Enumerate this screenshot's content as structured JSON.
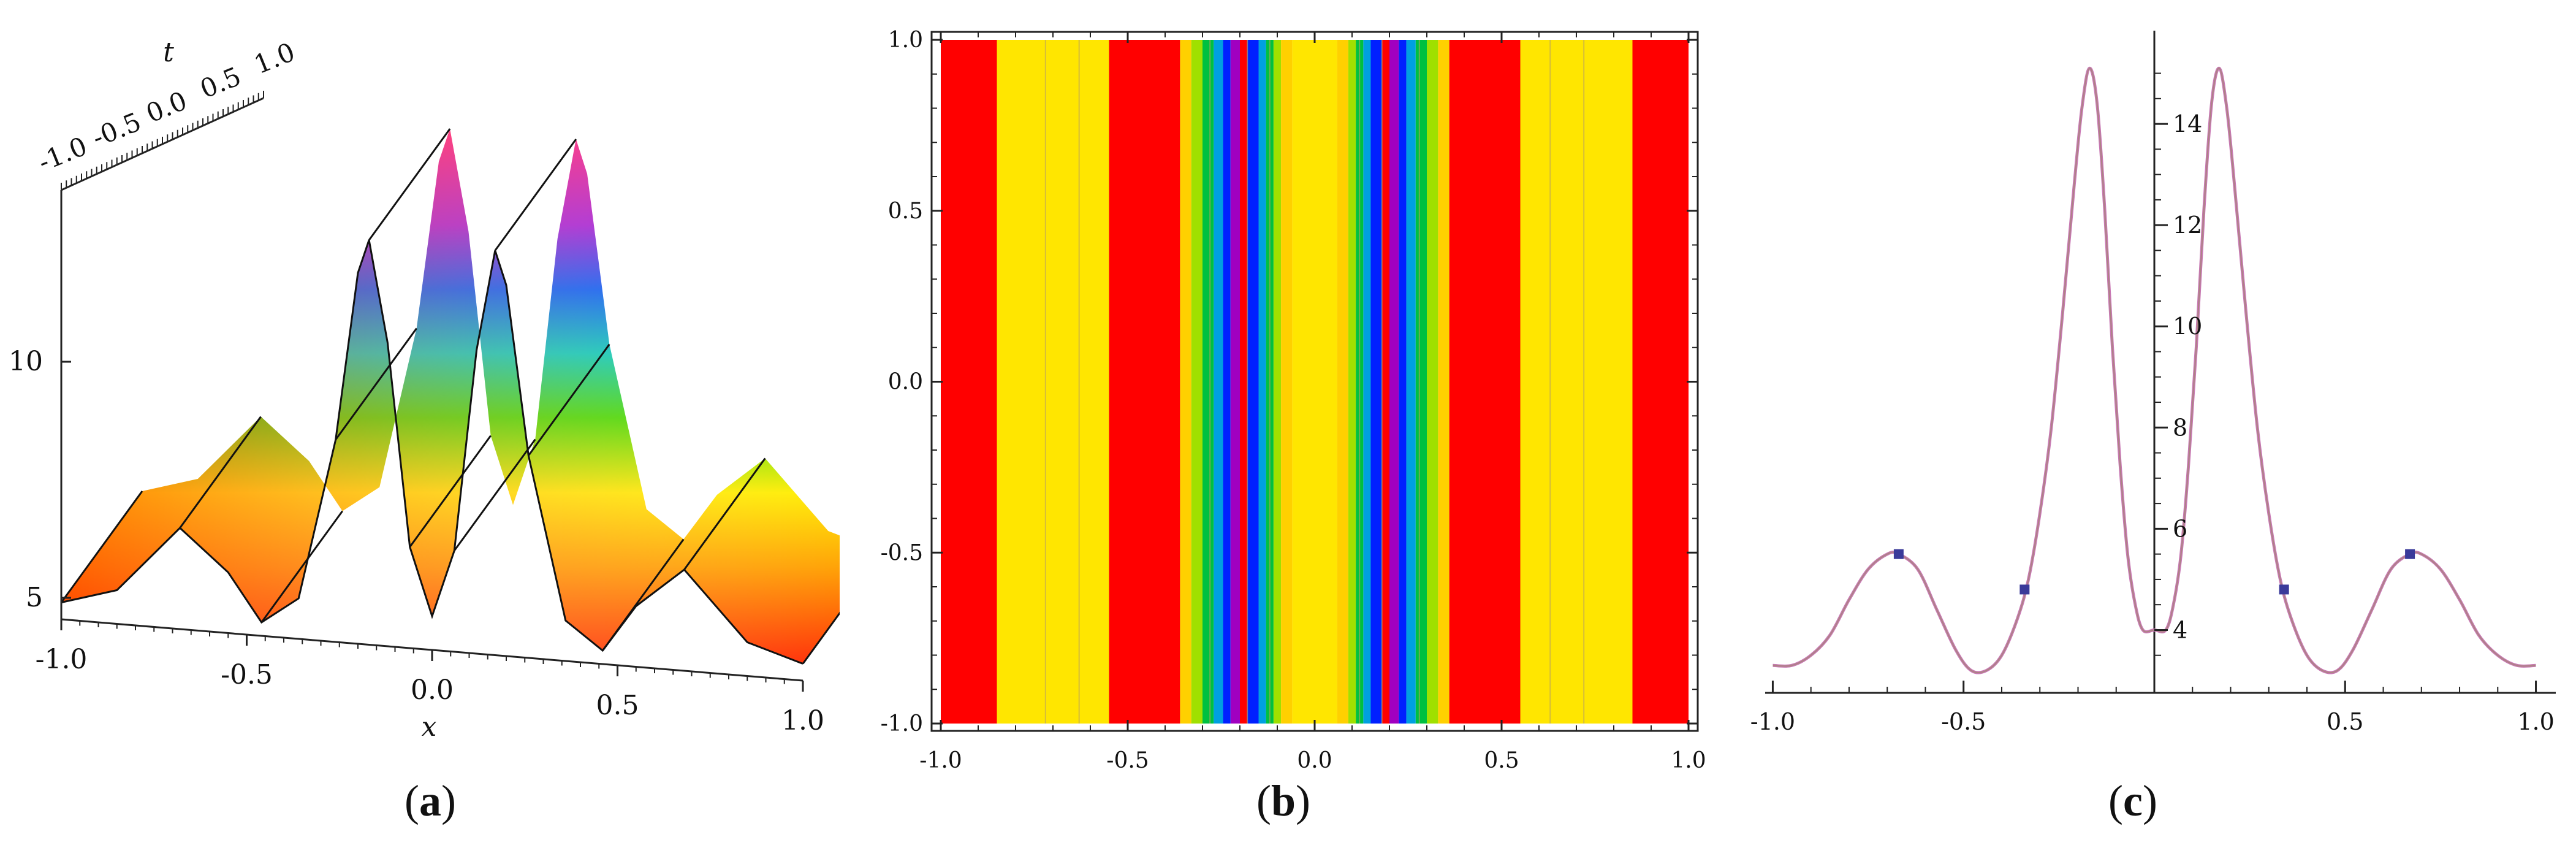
{
  "captions": [
    "(a)",
    "(b)",
    "(c)"
  ],
  "caption_parts": [
    {
      "open": "(",
      "letter": "a",
      "close": ")"
    },
    {
      "open": "(",
      "letter": "b",
      "close": ")"
    },
    {
      "open": "(",
      "letter": "c",
      "close": ")"
    }
  ],
  "chart_data": [
    {
      "type": "surface",
      "xlabel": "x",
      "tlabel": "t",
      "x_ticks": [
        "-1.0",
        "-0.5",
        "0.0",
        "0.5",
        "1.0"
      ],
      "t_ticks": [
        "-1.0",
        "-0.5",
        "0.0",
        "0.5",
        "1.0"
      ],
      "z_ticks": [
        "5",
        "10"
      ],
      "xlim": [
        -1,
        1
      ],
      "tlim": [
        -1,
        1
      ],
      "profile": {
        "x": [
          -1.0,
          -0.85,
          -0.68,
          -0.55,
          -0.46,
          -0.36,
          -0.26,
          -0.2,
          -0.17,
          -0.12,
          -0.06,
          0.0,
          0.06,
          0.12,
          0.17,
          0.2,
          0.26,
          0.36,
          0.46,
          0.55,
          0.68,
          0.85,
          1.0
        ],
        "z": [
          3.5,
          4.0,
          6.0,
          4.8,
          3.4,
          4.2,
          9.0,
          14.0,
          15.0,
          12.0,
          6.0,
          4.0,
          6.0,
          12.0,
          15.0,
          14.0,
          9.0,
          4.2,
          3.4,
          4.8,
          6.0,
          4.0,
          3.5
        ]
      }
    },
    {
      "type": "heatmap",
      "x_ticks": [
        "-1.0",
        "-0.5",
        "0.0",
        "0.5",
        "1.0"
      ],
      "y_ticks": [
        "1.0",
        "0.5",
        "0.0",
        "-0.5",
        "-1.0"
      ],
      "xlim": [
        -1,
        1
      ],
      "ylim": [
        -1,
        1
      ],
      "band_colors": [
        "#ff0000",
        "#ffe600",
        "#ff0000",
        "#ffd000",
        "#a0e000",
        "#00c040",
        "#00a0e0",
        "#0020ff",
        "#a000c0",
        "#ff0000",
        "#00c000",
        "#ffe600"
      ]
    },
    {
      "type": "line",
      "x_ticks": [
        "-1.0",
        "-0.5",
        "0.5",
        "1.0"
      ],
      "y_ticks": [
        "4",
        "6",
        "8",
        "10",
        "12",
        "14"
      ],
      "xlim": [
        -1.02,
        1.02
      ],
      "ylim": [
        3.0,
        15.6
      ],
      "line_color": "#c879b4",
      "marker_color": "#3a3a9a",
      "x": [
        -1.0,
        -0.95,
        -0.9,
        -0.85,
        -0.8,
        -0.75,
        -0.7,
        -0.67,
        -0.62,
        -0.57,
        -0.52,
        -0.48,
        -0.44,
        -0.4,
        -0.36,
        -0.33,
        -0.3,
        -0.27,
        -0.24,
        -0.21,
        -0.19,
        -0.17,
        -0.15,
        -0.13,
        -0.11,
        -0.09,
        -0.07,
        -0.05,
        -0.03,
        0.0,
        0.03,
        0.05,
        0.07,
        0.09,
        0.11,
        0.13,
        0.15,
        0.17,
        0.19,
        0.21,
        0.24,
        0.27,
        0.3,
        0.33,
        0.36,
        0.4,
        0.44,
        0.48,
        0.52,
        0.57,
        0.62,
        0.67,
        0.7,
        0.75,
        0.8,
        0.85,
        0.9,
        0.95,
        1.0
      ],
      "y": [
        3.3,
        3.3,
        3.5,
        3.9,
        4.6,
        5.2,
        5.5,
        5.5,
        5.2,
        4.4,
        3.6,
        3.2,
        3.2,
        3.5,
        4.2,
        5.0,
        6.3,
        8.0,
        10.3,
        12.8,
        14.3,
        15.1,
        14.4,
        12.3,
        9.6,
        7.3,
        5.5,
        4.5,
        4.0,
        4.0,
        4.0,
        4.5,
        5.5,
        7.3,
        9.6,
        12.3,
        14.4,
        15.1,
        14.3,
        12.8,
        10.3,
        8.0,
        6.3,
        5.0,
        4.2,
        3.5,
        3.2,
        3.2,
        3.6,
        4.4,
        5.2,
        5.5,
        5.5,
        5.2,
        4.6,
        3.9,
        3.5,
        3.3,
        3.3
      ],
      "markers": [
        {
          "x": -0.67,
          "y": 5.5
        },
        {
          "x": -0.34,
          "y": 4.8
        },
        {
          "x": 0.34,
          "y": 4.8
        },
        {
          "x": 0.67,
          "y": 5.5
        }
      ]
    }
  ]
}
